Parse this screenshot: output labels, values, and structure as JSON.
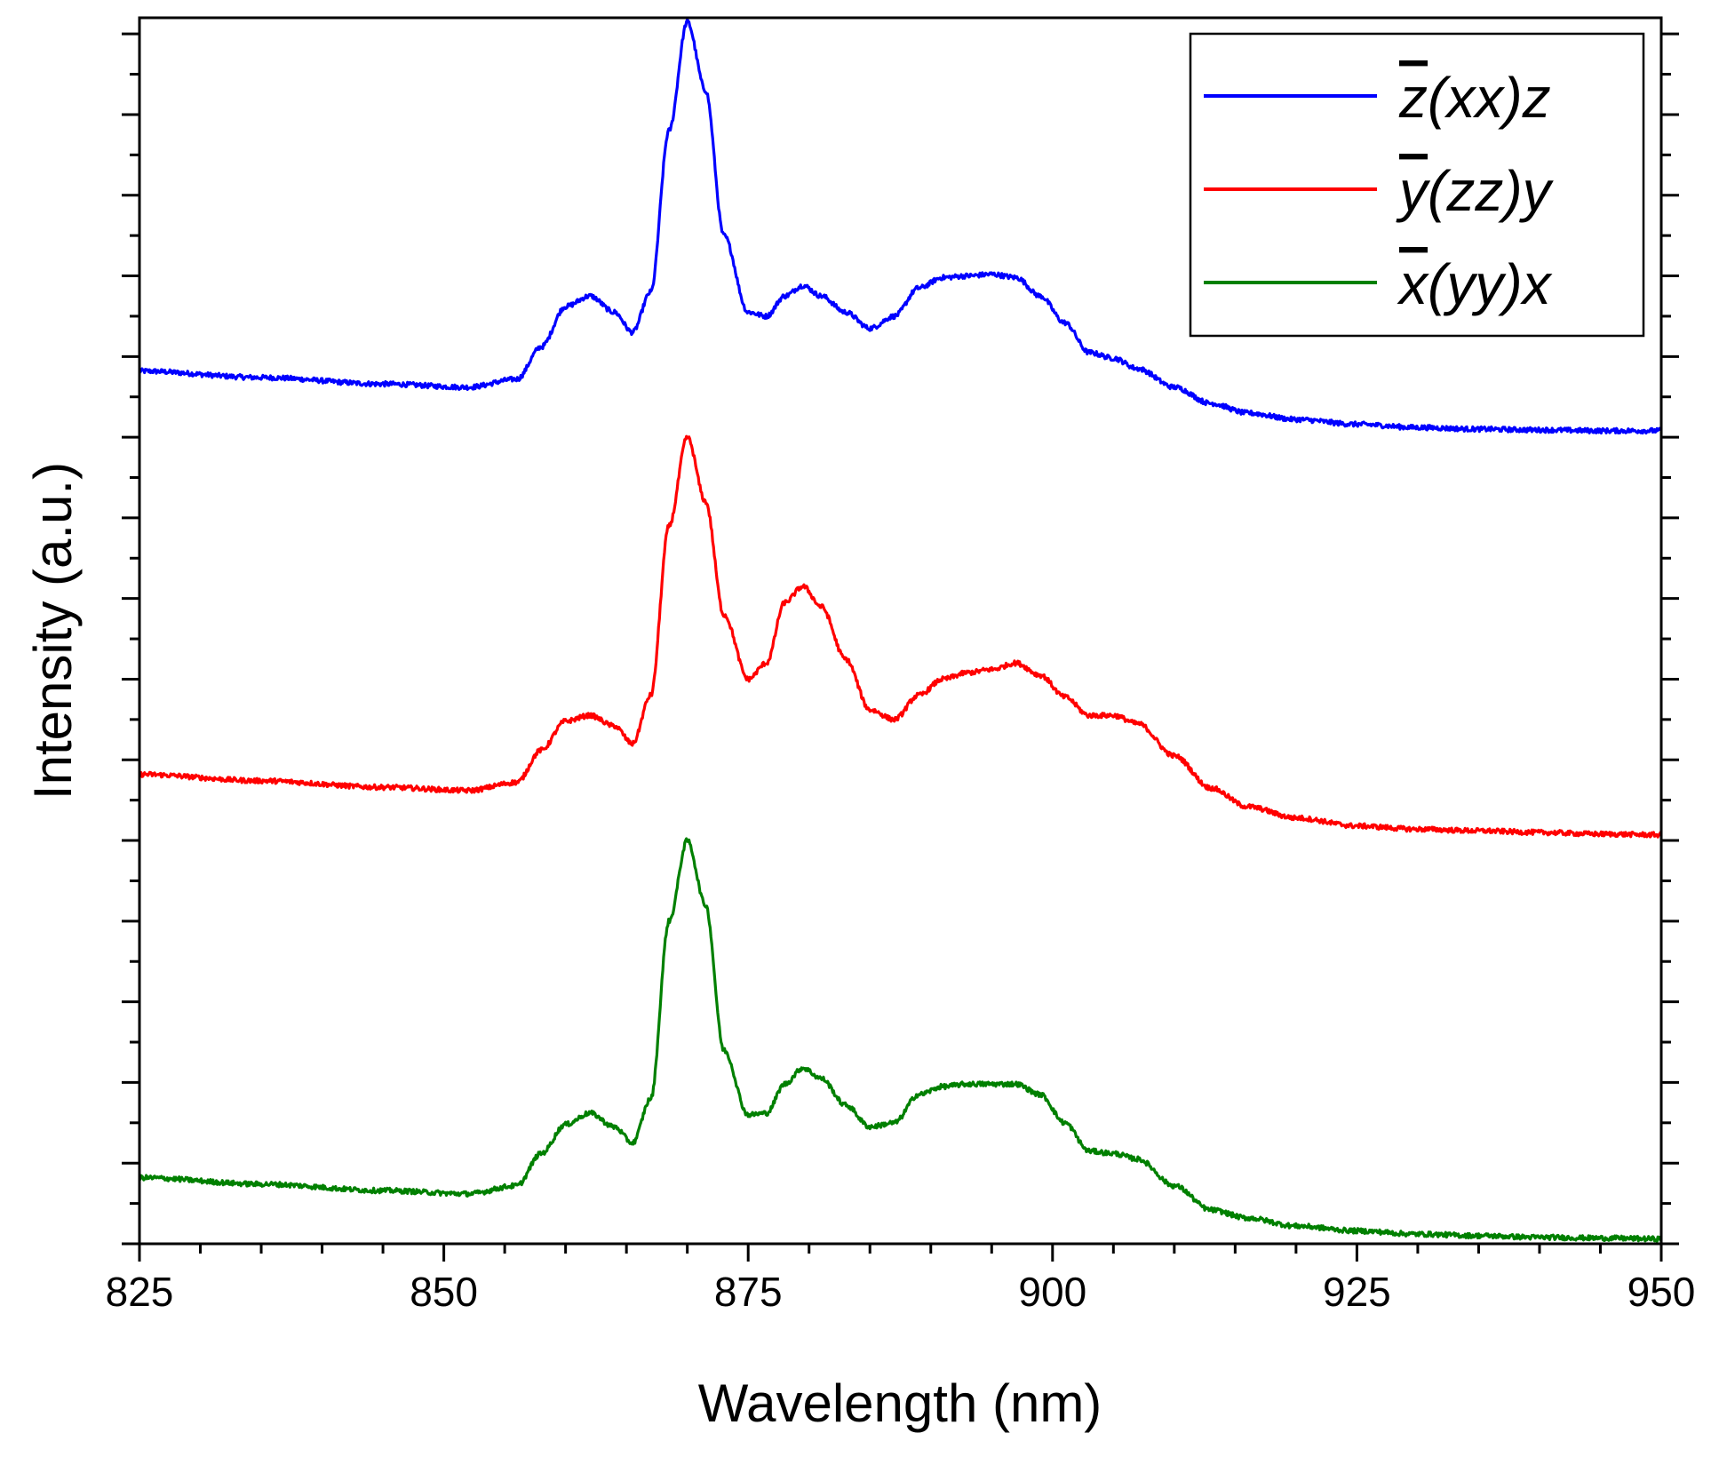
{
  "chart_data": {
    "type": "line",
    "title": "",
    "xlabel": "Wavelength (nm)",
    "ylabel": "Intensity (a.u.)",
    "xlim": [
      825,
      950
    ],
    "ylim": [
      0,
      15.2
    ],
    "xticks": [
      825,
      850,
      875,
      900,
      925,
      950
    ],
    "xtick_labels": [
      "825",
      "850",
      "875",
      "900",
      "925",
      "950"
    ],
    "yticks_labeled": false,
    "grid": false,
    "legend_position": "top-right",
    "series": [
      {
        "name": "z(xx)z",
        "legend": {
          "overbar": "z",
          "rest": "(xx)z"
        },
        "color": "#0000ff",
        "baseline": 10.0,
        "x": [
          825,
          835,
          845,
          852,
          856,
          858,
          860,
          862,
          864,
          865.5,
          867,
          868.5,
          870,
          871.5,
          873,
          875,
          876.5,
          878,
          879.5,
          881,
          883,
          885,
          887,
          889,
          891,
          893,
          895,
          897,
          899,
          901,
          903,
          905,
          907,
          910,
          913,
          916,
          920,
          925,
          930,
          935,
          940,
          945,
          950
        ],
        "y": [
          0.82,
          0.74,
          0.66,
          0.62,
          0.72,
          1.12,
          1.62,
          1.75,
          1.55,
          1.3,
          1.8,
          3.8,
          5.15,
          4.3,
          2.5,
          1.55,
          1.5,
          1.75,
          1.88,
          1.75,
          1.55,
          1.35,
          1.5,
          1.85,
          1.98,
          2.0,
          2.02,
          1.98,
          1.75,
          1.42,
          1.05,
          0.98,
          0.85,
          0.62,
          0.42,
          0.3,
          0.22,
          0.16,
          0.12,
          0.1,
          0.09,
          0.08,
          0.08
        ]
      },
      {
        "name": "y(zz)y",
        "legend": {
          "overbar": "y",
          "rest": "(zz)y"
        },
        "color": "#ff0000",
        "baseline": 5.0,
        "x": [
          825,
          835,
          845,
          852,
          856,
          858,
          860,
          862,
          864,
          865.5,
          867,
          868.5,
          870,
          871.5,
          873,
          875,
          876.5,
          878,
          879.5,
          881,
          883,
          885,
          887,
          889,
          891,
          893,
          895,
          897,
          899,
          901,
          903,
          905,
          907,
          910,
          913,
          916,
          920,
          925,
          930,
          935,
          940,
          945,
          950
        ],
        "y": [
          0.82,
          0.74,
          0.66,
          0.62,
          0.72,
          1.12,
          1.48,
          1.55,
          1.42,
          1.2,
          1.8,
          3.9,
          5.0,
          4.2,
          2.8,
          2.0,
          2.2,
          2.95,
          3.15,
          2.9,
          2.25,
          1.62,
          1.5,
          1.8,
          2.0,
          2.08,
          2.12,
          2.2,
          2.05,
          1.78,
          1.55,
          1.55,
          1.45,
          1.05,
          0.65,
          0.42,
          0.28,
          0.18,
          0.14,
          0.12,
          0.1,
          0.08,
          0.07
        ]
      },
      {
        "name": "x(yy)x",
        "legend": {
          "overbar": "x",
          "rest": "(yy)x"
        },
        "color": "#008000",
        "baseline": 0.0,
        "x": [
          825,
          835,
          845,
          852,
          856,
          858,
          860,
          862,
          864,
          865.5,
          867,
          868.5,
          870,
          871.5,
          873,
          875,
          876.5,
          878,
          879.5,
          881,
          883,
          885,
          887,
          889,
          891,
          893,
          895,
          897,
          899,
          901,
          903,
          905,
          907,
          910,
          913,
          916,
          920,
          925,
          930,
          935,
          940,
          945,
          950
        ],
        "y": [
          0.82,
          0.74,
          0.66,
          0.62,
          0.72,
          1.12,
          1.48,
          1.62,
          1.45,
          1.25,
          1.8,
          4.0,
          5.0,
          4.2,
          2.4,
          1.6,
          1.62,
          1.98,
          2.18,
          2.05,
          1.72,
          1.45,
          1.5,
          1.85,
          1.95,
          1.98,
          1.98,
          1.98,
          1.85,
          1.5,
          1.15,
          1.12,
          1.05,
          0.72,
          0.42,
          0.32,
          0.22,
          0.16,
          0.12,
          0.1,
          0.08,
          0.07,
          0.06
        ]
      }
    ]
  }
}
